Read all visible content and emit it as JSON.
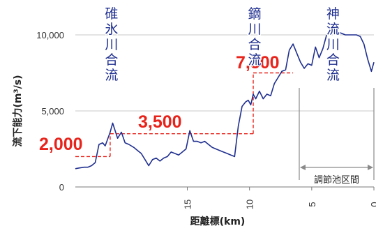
{
  "chart_data": {
    "type": "line",
    "xlabel": "距離標(km)",
    "ylabel": "流下能力(m³/s)",
    "xlim": [
      24,
      0
    ],
    "ylim": [
      0,
      10000
    ],
    "y_ticks": [
      "0",
      "5,000",
      "10,000"
    ],
    "x_ticks": [
      "15",
      "10",
      "5",
      "0"
    ],
    "x_tick_values": [
      15,
      10,
      5,
      0
    ],
    "y_tick_values": [
      0,
      5000,
      10000
    ],
    "series": [
      {
        "color": "#1f2f8f",
        "x": [
          24,
          23.7,
          23.3,
          23.0,
          22.7,
          22.4,
          22.1,
          21.8,
          21.6,
          21.2,
          21.0,
          20.6,
          20.3,
          20.0,
          19.7,
          19.3,
          19.0,
          18.7,
          18.4,
          18.1,
          17.8,
          17.5,
          17.2,
          16.9,
          16.6,
          16.3,
          16.0,
          15.7,
          15.4,
          15.1,
          14.8,
          14.5,
          14.2,
          13.9,
          13.6,
          13.3,
          13.0,
          12.7,
          12.4,
          12.1,
          11.8,
          11.5,
          11.2,
          10.9,
          10.6,
          10.3,
          10.1,
          9.9,
          9.7,
          9.5,
          9.2,
          8.9,
          8.6,
          8.3,
          8.0,
          7.7,
          7.4,
          7.1,
          6.8,
          6.5,
          6.2,
          5.9,
          5.6,
          5.3,
          5.0,
          4.7,
          4.4,
          4.1,
          3.8,
          3.6,
          3.4,
          3.2,
          2.9,
          2.6,
          2.3,
          2.0,
          1.7,
          1.4,
          1.1,
          0.8,
          0.5,
          0.2,
          0
        ],
        "values": [
          1200,
          1250,
          1300,
          1300,
          1400,
          1600,
          2800,
          2900,
          2700,
          3600,
          4200,
          3200,
          3600,
          2900,
          2800,
          2600,
          2400,
          2200,
          1800,
          1400,
          1800,
          1900,
          1700,
          1900,
          2000,
          2300,
          2200,
          2100,
          2300,
          2500,
          3700,
          3000,
          3000,
          2900,
          3000,
          2800,
          2600,
          2500,
          2400,
          2300,
          2200,
          2100,
          2000,
          4000,
          5300,
          5600,
          5700,
          5400,
          6100,
          5800,
          6300,
          5800,
          6100,
          6000,
          6800,
          7200,
          7600,
          7700,
          9000,
          9400,
          8800,
          8200,
          7800,
          8100,
          8000,
          9200,
          8500,
          9100,
          10000,
          10200,
          10300,
          10200,
          10200,
          10100,
          10000,
          10000,
          10000,
          10000,
          9900,
          9400,
          8400,
          7600,
          8200
        ]
      }
    ],
    "annotations": {
      "confluences": [
        {
          "label": "碓氷川合流",
          "x": 21.2
        },
        {
          "label": "鏑川合流",
          "x": 9.7
        },
        {
          "label": "神流川合流",
          "x": 3.4
        }
      ],
      "capacities": [
        {
          "label": "2,000",
          "value": 2000,
          "x_from": 24,
          "x_to": 21.2
        },
        {
          "label": "3,500",
          "value": 3500,
          "x_from": 21.2,
          "x_to": 9.7
        },
        {
          "label": "7,500",
          "value": 7500,
          "x_from": 9.7,
          "x_to": 6.5
        }
      ],
      "region": {
        "label": "調節池区間",
        "x_from": 6.0,
        "x_to": 0
      }
    }
  }
}
